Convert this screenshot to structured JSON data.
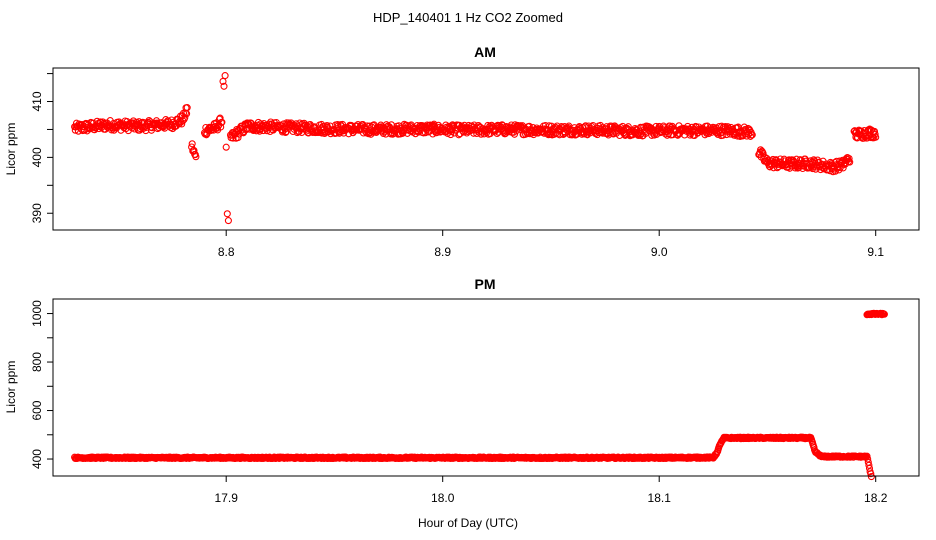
{
  "figure": {
    "title": "HDP_140401  1 Hz CO2 Zoomed",
    "xlabel": "Hour of Day (UTC)"
  },
  "chart_data": [
    {
      "type": "scatter",
      "title": "AM",
      "xlabel": "",
      "ylabel": "Licor ppm",
      "xlim": [
        8.72,
        9.12
      ],
      "ylim": [
        387,
        416
      ],
      "x_ticks": [
        8.8,
        8.9,
        9.0,
        9.1
      ],
      "x_tick_labels": [
        "8.8",
        "8.9",
        "9.0",
        "9.1"
      ],
      "y_ticks": [
        390,
        395,
        400,
        405,
        410,
        415
      ],
      "y_tick_labels": [
        "390",
        "",
        "400",
        "",
        "410",
        ""
      ],
      "marker": "open-circle",
      "color": "#ff0000",
      "series": [
        {
          "x": [
            8.73,
            8.745,
            8.76,
            8.775,
            8.78,
            8.782,
            8.784,
            8.786,
            8.79,
            8.795,
            8.798,
            8.7985,
            8.799,
            8.7995,
            8.8,
            8.8005,
            8.801,
            8.802,
            8.81,
            8.83,
            8.85,
            8.87,
            8.89,
            8.91,
            8.93,
            8.95,
            8.97,
            8.99,
            9.01,
            9.03,
            9.043,
            9.046,
            9.05,
            9.06,
            9.07,
            9.08,
            9.085,
            9.088,
            9.09,
            9.095,
            9.1
          ],
          "y": [
            405.2,
            405.8,
            405.6,
            406.0,
            406.8,
            408.5,
            402.2,
            399.8,
            404.8,
            405.3,
            406.5,
            414.2,
            412.0,
            415.0,
            401.0,
            389.5,
            387.8,
            403.5,
            405.6,
            405.3,
            405.1,
            405.0,
            405.1,
            404.9,
            405.0,
            404.9,
            404.9,
            404.7,
            404.8,
            404.8,
            404.5,
            401.0,
            399.0,
            398.8,
            398.9,
            398.3,
            398.7,
            400.0,
            404.0,
            404.3,
            404.4
          ]
        }
      ]
    },
    {
      "type": "scatter",
      "title": "PM",
      "xlabel": "Hour of Day (UTC)",
      "ylabel": "Licor ppm",
      "xlim": [
        17.82,
        18.22
      ],
      "ylim": [
        330,
        1060
      ],
      "x_ticks": [
        17.9,
        18.0,
        18.1,
        18.2
      ],
      "x_tick_labels": [
        "17.9",
        "18.0",
        "18.1",
        "18.2"
      ],
      "y_ticks": [
        400,
        500,
        600,
        700,
        800,
        900,
        1000
      ],
      "y_tick_labels": [
        "400",
        "",
        "600",
        "",
        "800",
        "",
        "1000"
      ],
      "marker": "open-circle",
      "color": "#ff0000",
      "series": [
        {
          "x": [
            17.83,
            17.86,
            17.9,
            17.94,
            17.98,
            18.02,
            18.06,
            18.1,
            18.125,
            18.127,
            18.128,
            18.13,
            18.14,
            18.15,
            18.16,
            18.17,
            18.171,
            18.172,
            18.175,
            18.19,
            18.196,
            18.198,
            18.196,
            18.198,
            18.2,
            18.204
          ],
          "y": [
            405,
            405,
            405,
            405,
            405,
            405,
            405,
            405,
            406,
            430,
            460,
            487,
            487,
            487,
            487,
            487,
            460,
            430,
            410,
            410,
            410,
            325,
            998,
            998,
            998,
            998
          ]
        }
      ]
    }
  ]
}
